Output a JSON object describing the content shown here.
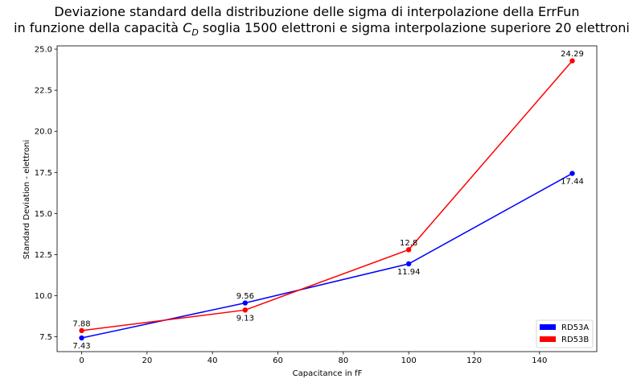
{
  "chart_data": {
    "type": "line",
    "title_line1": "Deviazione standard della distribuzione delle sigma di interpolazione della ErrFun",
    "title_line2_prefix": "in funzione della capacità ",
    "title_symbol": "C",
    "title_subscript": "D",
    "title_line2_suffix": " soglia 1500 elettroni e sigma interpolazione superiore 20 elettroni",
    "xlabel": "Capacitance in fF",
    "ylabel": "Standard Deviation - elettroni",
    "xlim": [
      -7.5,
      157.5
    ],
    "ylim": [
      6.6,
      25.2
    ],
    "xticks": [
      0,
      20,
      40,
      60,
      80,
      100,
      120,
      140
    ],
    "xtick_labels": [
      "0",
      "20",
      "40",
      "60",
      "80",
      "100",
      "120",
      "140"
    ],
    "yticks": [
      7.5,
      10.0,
      12.5,
      15.0,
      17.5,
      20.0,
      22.5,
      25.0
    ],
    "ytick_labels": [
      "7.5",
      "10.0",
      "12.5",
      "15.0",
      "17.5",
      "20.0",
      "22.5",
      "25.0"
    ],
    "grid": false,
    "legend_position": "bottom-right",
    "series": [
      {
        "name": "RD53A",
        "color": "#0000ff",
        "x": [
          0,
          50,
          100,
          150
        ],
        "y": [
          7.43,
          9.56,
          11.94,
          17.44
        ],
        "labels": [
          "7.43",
          "9.56",
          "11.94",
          "17.44"
        ],
        "label_side": [
          "below",
          "above",
          "below",
          "below"
        ]
      },
      {
        "name": "RD53B",
        "color": "#ff0000",
        "x": [
          0,
          50,
          100,
          150
        ],
        "y": [
          7.88,
          9.13,
          12.8,
          24.29
        ],
        "labels": [
          "7.88",
          "9.13",
          "12.8",
          "24.29"
        ],
        "label_side": [
          "above",
          "below",
          "above",
          "above"
        ]
      }
    ]
  }
}
